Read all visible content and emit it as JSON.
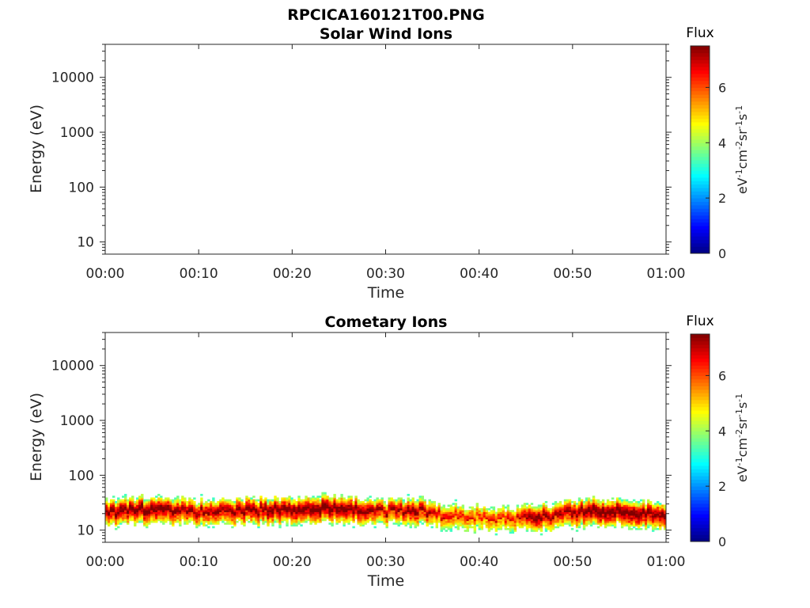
{
  "figure": {
    "filename": "RPCICA160121T00.PNG"
  },
  "colorbar": {
    "title": "Flux",
    "unit_parts": [
      "eV",
      "-1",
      "cm",
      "-2",
      "sr",
      "-1",
      "s",
      "-1"
    ],
    "ticks": [
      "0",
      "2",
      "4",
      "6"
    ],
    "range": [
      0,
      7.5
    ],
    "colormap": "jet"
  },
  "chart_data": [
    {
      "type": "heatmap",
      "title": "Solar Wind Ions",
      "xlabel": "Time",
      "ylabel": "Energy (eV)",
      "x_ticks": [
        "00:00",
        "00:10",
        "00:20",
        "00:30",
        "00:40",
        "00:50",
        "01:00"
      ],
      "x_range_minutes": [
        0,
        60
      ],
      "y_ticks": [
        "10",
        "100",
        "1000",
        "10000"
      ],
      "y_scale": "log",
      "y_range": [
        6,
        40000
      ],
      "profile": []
    },
    {
      "type": "heatmap",
      "title": "Cometary Ions",
      "xlabel": "Time",
      "ylabel": "Energy (eV)",
      "x_ticks": [
        "00:00",
        "00:10",
        "00:20",
        "00:30",
        "00:40",
        "00:50",
        "01:00"
      ],
      "x_range_minutes": [
        0,
        60
      ],
      "y_ticks": [
        "10",
        "100",
        "1000",
        "10000"
      ],
      "y_scale": "log",
      "y_range": [
        6,
        40000
      ],
      "profile": [
        {
          "t": 0,
          "peak_ev": 20,
          "peak_flux": 6.5
        },
        {
          "t": 5,
          "peak_ev": 22,
          "peak_flux": 6.8
        },
        {
          "t": 10,
          "peak_ev": 20,
          "peak_flux": 6.2
        },
        {
          "t": 15,
          "peak_ev": 21,
          "peak_flux": 6.5
        },
        {
          "t": 20,
          "peak_ev": 22,
          "peak_flux": 6.7
        },
        {
          "t": 24,
          "peak_ev": 24,
          "peak_flux": 6.9
        },
        {
          "t": 28,
          "peak_ev": 22,
          "peak_flux": 6.5
        },
        {
          "t": 30,
          "peak_ev": 20,
          "peak_flux": 6.0
        },
        {
          "t": 33,
          "peak_ev": 22,
          "peak_flux": 6.5
        },
        {
          "t": 36,
          "peak_ev": 17,
          "peak_flux": 5.6
        },
        {
          "t": 40,
          "peak_ev": 16,
          "peak_flux": 5.3
        },
        {
          "t": 44,
          "peak_ev": 15,
          "peak_flux": 5.6
        },
        {
          "t": 46,
          "peak_ev": 16,
          "peak_flux": 6.8
        },
        {
          "t": 48,
          "peak_ev": 17,
          "peak_flux": 6.0
        },
        {
          "t": 51,
          "peak_ev": 20,
          "peak_flux": 6.7
        },
        {
          "t": 55,
          "peak_ev": 20,
          "peak_flux": 7.0
        },
        {
          "t": 60,
          "peak_ev": 17,
          "peak_flux": 6.5
        }
      ]
    }
  ]
}
